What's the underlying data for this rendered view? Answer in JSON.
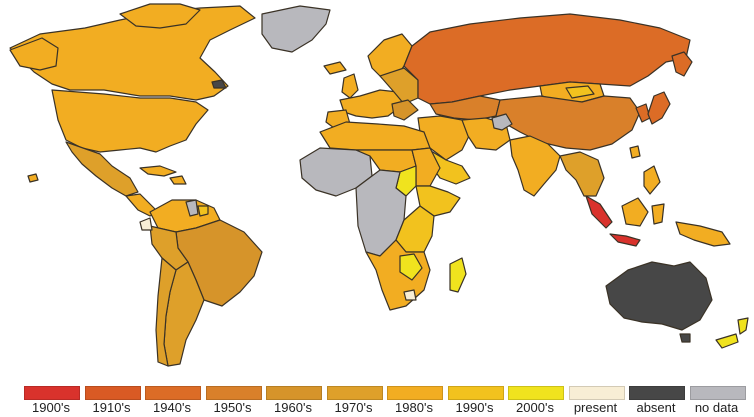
{
  "map": {
    "colors": {
      "c1900": "#d9322c",
      "c1910": "#d95a24",
      "c1940": "#dc6c26",
      "c1950": "#d9802a",
      "c1960": "#d6942a",
      "c1970": "#dea02a",
      "c1980": "#f2ad22",
      "c1990": "#f2c21e",
      "c2000": "#f0e31e",
      "present": "#f8eed5",
      "absent": "#474747",
      "nodata": "#b8b8bd",
      "border": "#3a3226",
      "ocean": "#ffffff"
    }
  },
  "legend": [
    {
      "label": "1900's",
      "color": "#d9322c"
    },
    {
      "label": "1910's",
      "color": "#d95a24"
    },
    {
      "label": "1940's",
      "color": "#dc6c26"
    },
    {
      "label": "1950's",
      "color": "#d9802a"
    },
    {
      "label": "1960's",
      "color": "#d6942a"
    },
    {
      "label": "1970's",
      "color": "#dea02a"
    },
    {
      "label": "1980's",
      "color": "#f2ad22"
    },
    {
      "label": "1990's",
      "color": "#f2c21e"
    },
    {
      "label": "2000's",
      "color": "#f0e31e"
    },
    {
      "label": "present",
      "color": "#f8eed5"
    },
    {
      "label": "absent",
      "color": "#474747"
    },
    {
      "label": "no data",
      "color": "#b8b8bd"
    }
  ]
}
